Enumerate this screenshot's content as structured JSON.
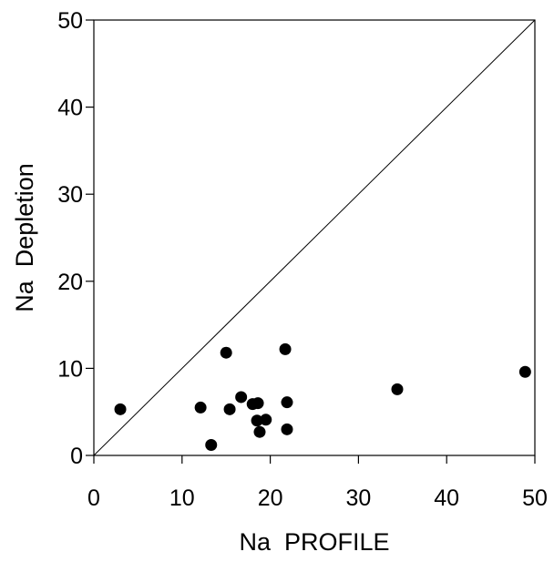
{
  "chart_data": {
    "type": "scatter",
    "title": "",
    "xlabel": "Na  PROFILE",
    "ylabel": "Na  Depletion",
    "xlim": [
      0,
      50
    ],
    "ylim": [
      0,
      50
    ],
    "xticks": [
      "0",
      "10",
      "20",
      "30",
      "40",
      "50"
    ],
    "yticks": [
      "0",
      "10",
      "20",
      "30",
      "40",
      "50"
    ],
    "grid": false,
    "legend": "none",
    "reference_line": {
      "type": "identity",
      "from": [
        0,
        0
      ],
      "to": [
        50,
        50
      ]
    },
    "marker_color": "#000000",
    "series": [
      {
        "points": [
          {
            "x": 3.0,
            "y": 5.3
          },
          {
            "x": 12.1,
            "y": 5.5
          },
          {
            "x": 13.3,
            "y": 1.2
          },
          {
            "x": 15.0,
            "y": 11.8
          },
          {
            "x": 15.4,
            "y": 5.3
          },
          {
            "x": 16.7,
            "y": 6.7
          },
          {
            "x": 18.0,
            "y": 5.9
          },
          {
            "x": 18.6,
            "y": 6.0
          },
          {
            "x": 18.5,
            "y": 4.0
          },
          {
            "x": 19.5,
            "y": 4.1
          },
          {
            "x": 18.8,
            "y": 2.7
          },
          {
            "x": 21.7,
            "y": 12.2
          },
          {
            "x": 21.9,
            "y": 6.1
          },
          {
            "x": 21.9,
            "y": 3.0
          },
          {
            "x": 34.4,
            "y": 7.6
          },
          {
            "x": 48.9,
            "y": 9.6
          }
        ]
      }
    ]
  }
}
